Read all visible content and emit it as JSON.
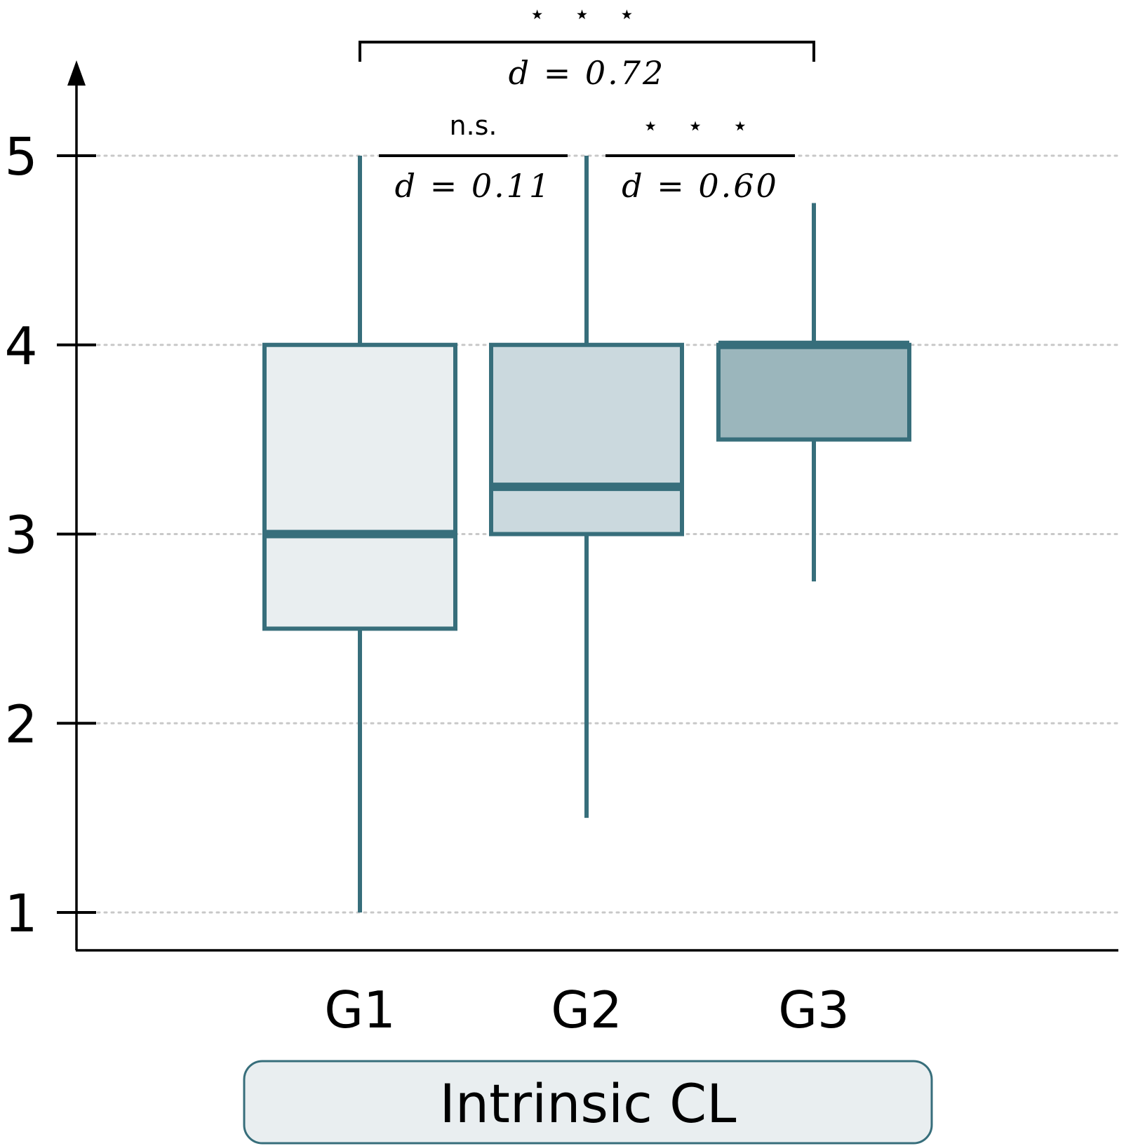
{
  "chart_data": {
    "type": "boxplot",
    "title": "",
    "xlabel": "",
    "ylabel": "",
    "ylim": [
      0.8,
      5.3
    ],
    "yticks": [
      1,
      2,
      3,
      4,
      5
    ],
    "grid": "horizontal dotted",
    "categories": [
      "G1",
      "G2",
      "G3"
    ],
    "boxes": [
      {
        "name": "G1",
        "min": 1.0,
        "q1": 2.5,
        "median": 3.0,
        "q3": 4.0,
        "max": 5.0,
        "fill": "#e9eef0"
      },
      {
        "name": "G2",
        "min": 1.5,
        "q1": 3.0,
        "median": 3.25,
        "q3": 4.0,
        "max": 5.0,
        "fill": "#cbd9de"
      },
      {
        "name": "G3",
        "min": 2.75,
        "q1": 3.5,
        "median": 4.0,
        "q3": 4.0,
        "max": 4.75,
        "fill": "#9bb6bc"
      }
    ],
    "annotations": [
      {
        "from": "G1",
        "to": "G3",
        "significance": "⋆ ⋆ ⋆",
        "effect": "d = 0.72",
        "style": "bracket"
      },
      {
        "from": "G1",
        "to": "G2",
        "significance": "n.s.",
        "effect": "d = 0.11",
        "style": "line"
      },
      {
        "from": "G2",
        "to": "G3",
        "significance": "⋆ ⋆ ⋆",
        "effect": "d = 0.60",
        "style": "line"
      }
    ],
    "legend": {
      "label": "Intrinsic CL",
      "placement": "bottom-center"
    }
  },
  "colors": {
    "stroke": "#376e7b",
    "axis": "#000000",
    "grid": "#c8c8c8",
    "legend_fill": "#e9eef0"
  }
}
